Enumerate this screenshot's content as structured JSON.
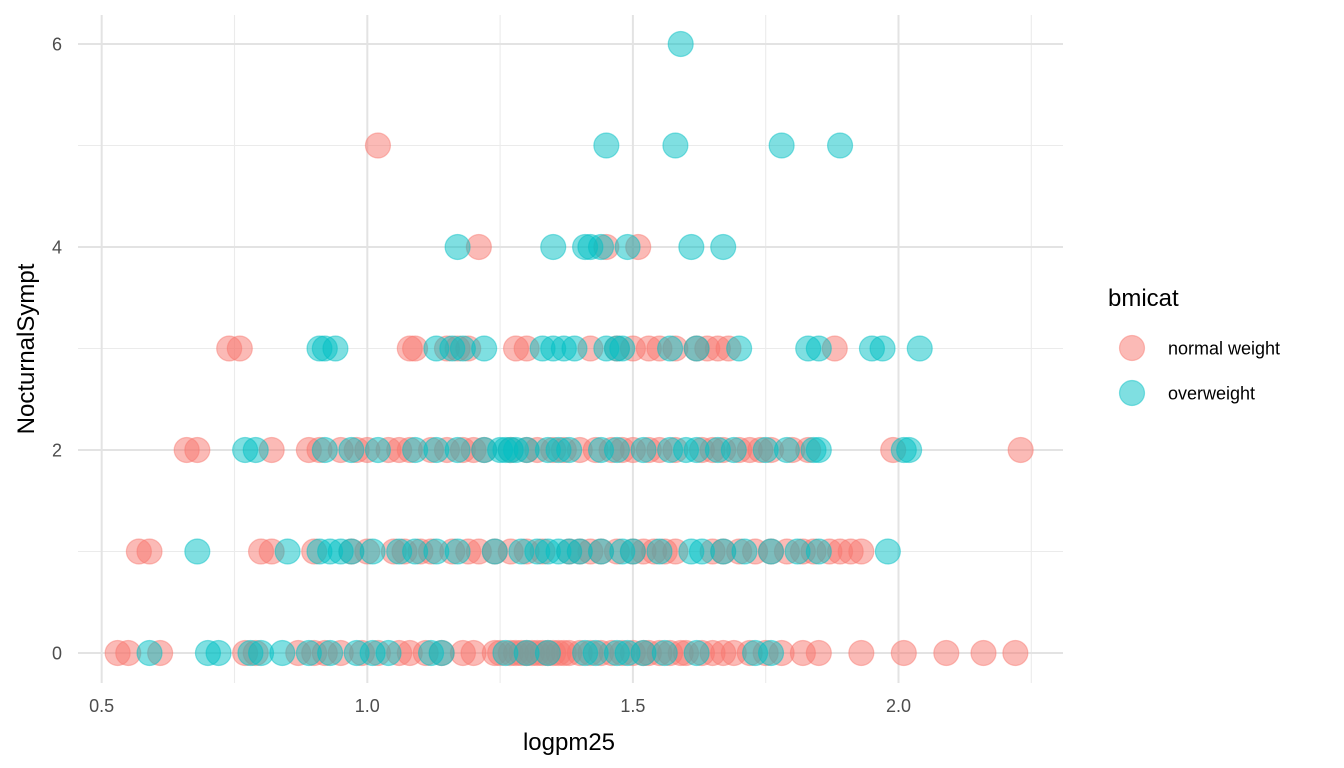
{
  "chart_data": {
    "type": "scatter",
    "title": "",
    "xlabel": "logpm25",
    "ylabel": "NocturnalSympt",
    "xlim": [
      0.45,
      2.3
    ],
    "ylim": [
      -0.3,
      6.3
    ],
    "x_ticks": [
      0.5,
      1.0,
      1.5,
      2.0
    ],
    "x_tick_labels": [
      "0.5",
      "1.0",
      "1.5",
      "2.0"
    ],
    "y_ticks": [
      0,
      2,
      4,
      6
    ],
    "y_tick_labels": [
      "0",
      "2",
      "4",
      "6"
    ],
    "grid": true,
    "legend_title": "bmicat",
    "legend_position": "right",
    "point_alpha": 0.5,
    "series": [
      {
        "name": "normal weight",
        "color": "#F8766D",
        "points": [
          [
            0.53,
            0
          ],
          [
            0.55,
            0
          ],
          [
            0.61,
            0
          ],
          [
            0.77,
            0
          ],
          [
            0.79,
            0
          ],
          [
            0.87,
            0
          ],
          [
            0.9,
            0
          ],
          [
            0.92,
            0
          ],
          [
            0.95,
            0
          ],
          [
            0.99,
            0
          ],
          [
            1.02,
            0
          ],
          [
            1.06,
            0
          ],
          [
            1.08,
            0
          ],
          [
            1.11,
            0
          ],
          [
            1.14,
            0
          ],
          [
            1.18,
            0
          ],
          [
            1.2,
            0
          ],
          [
            1.24,
            0
          ],
          [
            1.25,
            0
          ],
          [
            1.27,
            0
          ],
          [
            1.28,
            0
          ],
          [
            1.29,
            0
          ],
          [
            1.3,
            0
          ],
          [
            1.31,
            0
          ],
          [
            1.32,
            0
          ],
          [
            1.33,
            0
          ],
          [
            1.34,
            0
          ],
          [
            1.35,
            0
          ],
          [
            1.36,
            0
          ],
          [
            1.37,
            0
          ],
          [
            1.38,
            0
          ],
          [
            1.4,
            0
          ],
          [
            1.42,
            0
          ],
          [
            1.44,
            0
          ],
          [
            1.46,
            0
          ],
          [
            1.48,
            0
          ],
          [
            1.5,
            0
          ],
          [
            1.52,
            0
          ],
          [
            1.53,
            0
          ],
          [
            1.55,
            0
          ],
          [
            1.57,
            0
          ],
          [
            1.59,
            0
          ],
          [
            1.6,
            0
          ],
          [
            1.63,
            0
          ],
          [
            1.65,
            0
          ],
          [
            1.67,
            0
          ],
          [
            1.69,
            0
          ],
          [
            1.72,
            0
          ],
          [
            1.75,
            0
          ],
          [
            1.78,
            0
          ],
          [
            1.82,
            0
          ],
          [
            1.85,
            0
          ],
          [
            1.93,
            0
          ],
          [
            2.01,
            0
          ],
          [
            2.09,
            0
          ],
          [
            2.16,
            0
          ],
          [
            2.22,
            0
          ],
          [
            0.57,
            1
          ],
          [
            0.59,
            1
          ],
          [
            0.8,
            1
          ],
          [
            0.82,
            1
          ],
          [
            0.9,
            1
          ],
          [
            0.97,
            1
          ],
          [
            1.0,
            1
          ],
          [
            1.05,
            1
          ],
          [
            1.07,
            1
          ],
          [
            1.1,
            1
          ],
          [
            1.12,
            1
          ],
          [
            1.16,
            1
          ],
          [
            1.19,
            1
          ],
          [
            1.21,
            1
          ],
          [
            1.24,
            1
          ],
          [
            1.27,
            1
          ],
          [
            1.3,
            1
          ],
          [
            1.33,
            1
          ],
          [
            1.38,
            1
          ],
          [
            1.4,
            1
          ],
          [
            1.42,
            1
          ],
          [
            1.44,
            1
          ],
          [
            1.47,
            1
          ],
          [
            1.5,
            1
          ],
          [
            1.52,
            1
          ],
          [
            1.54,
            1
          ],
          [
            1.56,
            1
          ],
          [
            1.58,
            1
          ],
          [
            1.65,
            1
          ],
          [
            1.67,
            1
          ],
          [
            1.7,
            1
          ],
          [
            1.73,
            1
          ],
          [
            1.76,
            1
          ],
          [
            1.79,
            1
          ],
          [
            1.82,
            1
          ],
          [
            1.84,
            1
          ],
          [
            1.87,
            1
          ],
          [
            1.89,
            1
          ],
          [
            1.91,
            1
          ],
          [
            1.93,
            1
          ],
          [
            0.66,
            2
          ],
          [
            0.68,
            2
          ],
          [
            0.82,
            2
          ],
          [
            0.89,
            2
          ],
          [
            0.91,
            2
          ],
          [
            0.95,
            2
          ],
          [
            0.98,
            2
          ],
          [
            1.0,
            2
          ],
          [
            1.04,
            2
          ],
          [
            1.06,
            2
          ],
          [
            1.08,
            2
          ],
          [
            1.12,
            2
          ],
          [
            1.15,
            2
          ],
          [
            1.18,
            2
          ],
          [
            1.2,
            2
          ],
          [
            1.22,
            2
          ],
          [
            1.27,
            2
          ],
          [
            1.3,
            2
          ],
          [
            1.32,
            2
          ],
          [
            1.35,
            2
          ],
          [
            1.37,
            2
          ],
          [
            1.4,
            2
          ],
          [
            1.43,
            2
          ],
          [
            1.46,
            2
          ],
          [
            1.48,
            2
          ],
          [
            1.5,
            2
          ],
          [
            1.53,
            2
          ],
          [
            1.55,
            2
          ],
          [
            1.58,
            2
          ],
          [
            1.63,
            2
          ],
          [
            1.65,
            2
          ],
          [
            1.67,
            2
          ],
          [
            1.7,
            2
          ],
          [
            1.72,
            2
          ],
          [
            1.74,
            2
          ],
          [
            1.76,
            2
          ],
          [
            1.8,
            2
          ],
          [
            1.83,
            2
          ],
          [
            1.99,
            2
          ],
          [
            2.23,
            2
          ],
          [
            0.74,
            3
          ],
          [
            0.76,
            3
          ],
          [
            1.08,
            3
          ],
          [
            1.09,
            3
          ],
          [
            1.15,
            3
          ],
          [
            1.17,
            3
          ],
          [
            1.19,
            3
          ],
          [
            1.28,
            3
          ],
          [
            1.3,
            3
          ],
          [
            1.42,
            3
          ],
          [
            1.47,
            3
          ],
          [
            1.5,
            3
          ],
          [
            1.53,
            3
          ],
          [
            1.55,
            3
          ],
          [
            1.58,
            3
          ],
          [
            1.62,
            3
          ],
          [
            1.64,
            3
          ],
          [
            1.66,
            3
          ],
          [
            1.68,
            3
          ],
          [
            1.88,
            3
          ],
          [
            1.21,
            4
          ],
          [
            1.45,
            4
          ],
          [
            1.51,
            4
          ],
          [
            1.02,
            5
          ]
        ]
      },
      {
        "name": "overweight",
        "color": "#00BFC4",
        "points": [
          [
            0.59,
            0
          ],
          [
            0.7,
            0
          ],
          [
            0.72,
            0
          ],
          [
            0.78,
            0
          ],
          [
            0.8,
            0
          ],
          [
            0.84,
            0
          ],
          [
            0.89,
            0
          ],
          [
            0.93,
            0
          ],
          [
            0.98,
            0
          ],
          [
            1.01,
            0
          ],
          [
            1.04,
            0
          ],
          [
            1.12,
            0
          ],
          [
            1.14,
            0
          ],
          [
            1.26,
            0
          ],
          [
            1.3,
            0
          ],
          [
            1.34,
            0
          ],
          [
            1.41,
            0
          ],
          [
            1.43,
            0
          ],
          [
            1.47,
            0
          ],
          [
            1.49,
            0
          ],
          [
            1.52,
            0
          ],
          [
            1.56,
            0
          ],
          [
            1.62,
            0
          ],
          [
            1.73,
            0
          ],
          [
            1.76,
            0
          ],
          [
            0.68,
            1
          ],
          [
            0.85,
            1
          ],
          [
            0.91,
            1
          ],
          [
            0.93,
            1
          ],
          [
            0.95,
            1
          ],
          [
            0.97,
            1
          ],
          [
            1.01,
            1
          ],
          [
            1.06,
            1
          ],
          [
            1.09,
            1
          ],
          [
            1.13,
            1
          ],
          [
            1.17,
            1
          ],
          [
            1.24,
            1
          ],
          [
            1.29,
            1
          ],
          [
            1.32,
            1
          ],
          [
            1.34,
            1
          ],
          [
            1.36,
            1
          ],
          [
            1.38,
            1
          ],
          [
            1.4,
            1
          ],
          [
            1.44,
            1
          ],
          [
            1.48,
            1
          ],
          [
            1.5,
            1
          ],
          [
            1.55,
            1
          ],
          [
            1.61,
            1
          ],
          [
            1.63,
            1
          ],
          [
            1.67,
            1
          ],
          [
            1.71,
            1
          ],
          [
            1.76,
            1
          ],
          [
            1.81,
            1
          ],
          [
            1.85,
            1
          ],
          [
            1.98,
            1
          ],
          [
            0.77,
            2
          ],
          [
            0.79,
            2
          ],
          [
            0.92,
            2
          ],
          [
            0.97,
            2
          ],
          [
            1.02,
            2
          ],
          [
            1.09,
            2
          ],
          [
            1.13,
            2
          ],
          [
            1.17,
            2
          ],
          [
            1.22,
            2
          ],
          [
            1.25,
            2
          ],
          [
            1.26,
            2
          ],
          [
            1.27,
            2
          ],
          [
            1.28,
            2
          ],
          [
            1.3,
            2
          ],
          [
            1.34,
            2
          ],
          [
            1.36,
            2
          ],
          [
            1.38,
            2
          ],
          [
            1.44,
            2
          ],
          [
            1.47,
            2
          ],
          [
            1.52,
            2
          ],
          [
            1.57,
            2
          ],
          [
            1.6,
            2
          ],
          [
            1.62,
            2
          ],
          [
            1.66,
            2
          ],
          [
            1.69,
            2
          ],
          [
            1.75,
            2
          ],
          [
            1.79,
            2
          ],
          [
            1.84,
            2
          ],
          [
            1.85,
            2
          ],
          [
            2.01,
            2
          ],
          [
            2.02,
            2
          ],
          [
            0.91,
            3
          ],
          [
            0.92,
            3
          ],
          [
            0.94,
            3
          ],
          [
            1.13,
            3
          ],
          [
            1.16,
            3
          ],
          [
            1.18,
            3
          ],
          [
            1.22,
            3
          ],
          [
            1.33,
            3
          ],
          [
            1.35,
            3
          ],
          [
            1.37,
            3
          ],
          [
            1.39,
            3
          ],
          [
            1.45,
            3
          ],
          [
            1.47,
            3
          ],
          [
            1.48,
            3
          ],
          [
            1.57,
            3
          ],
          [
            1.62,
            3
          ],
          [
            1.7,
            3
          ],
          [
            1.83,
            3
          ],
          [
            1.85,
            3
          ],
          [
            1.95,
            3
          ],
          [
            1.97,
            3
          ],
          [
            2.04,
            3
          ],
          [
            1.17,
            4
          ],
          [
            1.35,
            4
          ],
          [
            1.41,
            4
          ],
          [
            1.42,
            4
          ],
          [
            1.44,
            4
          ],
          [
            1.49,
            4
          ],
          [
            1.61,
            4
          ],
          [
            1.67,
            4
          ],
          [
            1.45,
            5
          ],
          [
            1.58,
            5
          ],
          [
            1.78,
            5
          ],
          [
            1.89,
            5
          ],
          [
            1.59,
            6
          ]
        ]
      }
    ]
  }
}
